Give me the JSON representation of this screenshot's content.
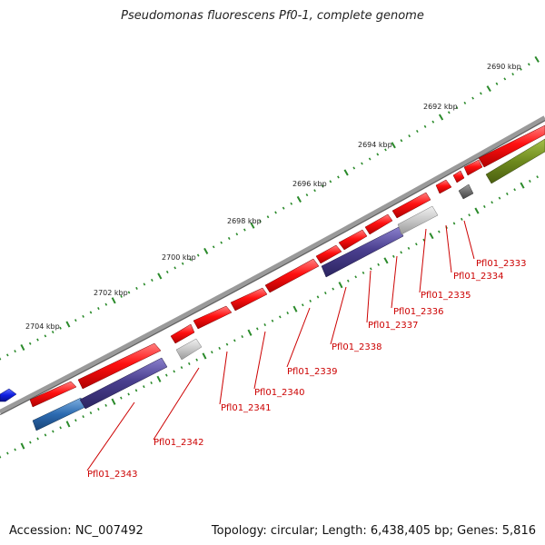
{
  "title": "Pseudomonas fluorescens Pf0-1, complete genome",
  "footer": {
    "accession": "Accession: NC_007492",
    "stats": "Topology: circular; Length: 6,438,405 bp; Genes: 5,816"
  },
  "colors": {
    "backbone": "#8c8c8c",
    "tick": "#2a8a2a",
    "label": "#cc0000",
    "red": "#ff1010",
    "purple": "#4a3f8f",
    "grey": "#c8c8c8",
    "darkgrey": "#6e6e6e",
    "olive": "#6e8a1e",
    "blue": "#2c6ab0",
    "royal": "#0f1ee0"
  },
  "ticks": [
    {
      "label": "2690 kbp"
    },
    {
      "label": "2692 kbp"
    },
    {
      "label": "2694 kbp"
    },
    {
      "label": "2696 kbp"
    },
    {
      "label": "2698 kbp"
    },
    {
      "label": "2700 kbp"
    },
    {
      "label": "2702 kbp"
    },
    {
      "label": "2704 kbp"
    }
  ],
  "genes": [
    {
      "label": "Pfl01_2333",
      "color": "red"
    },
    {
      "label": "Pfl01_2334",
      "color": "darkgrey"
    },
    {
      "label": "Pfl01_2335",
      "color": "grey"
    },
    {
      "label": "Pfl01_2336",
      "color": "red"
    },
    {
      "label": "Pfl01_2337",
      "color": "purple"
    },
    {
      "label": "Pfl01_2338",
      "color": "red"
    },
    {
      "label": "Pfl01_2339",
      "color": "red"
    },
    {
      "label": "Pfl01_2340",
      "color": "red"
    },
    {
      "label": "Pfl01_2341",
      "color": "grey"
    },
    {
      "label": "Pfl01_2342",
      "color": "purple"
    },
    {
      "label": "Pfl01_2343",
      "color": "blue"
    }
  ]
}
